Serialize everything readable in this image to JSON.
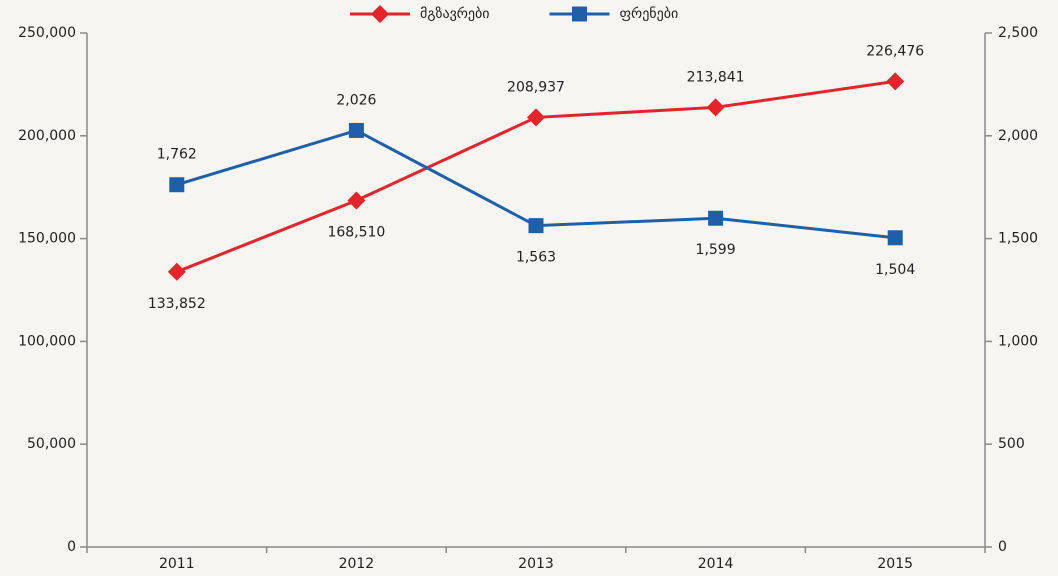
{
  "chart_data": {
    "type": "line",
    "categories": [
      "2011",
      "2012",
      "2013",
      "2014",
      "2015"
    ],
    "series": [
      {
        "name": "მგზავრები",
        "color": "#e3242b",
        "marker": "diamond",
        "axis": "y",
        "values": [
          133852,
          168510,
          208937,
          213841,
          226476
        ],
        "value_labels": [
          "133,852",
          "168,510",
          "208,937",
          "213,841",
          "226,476"
        ]
      },
      {
        "name": "ფრენები",
        "color": "#1f5fa8",
        "marker": "square",
        "axis": "y2",
        "values": [
          1762,
          2026,
          1563,
          1599,
          1504
        ],
        "value_labels": [
          "1,762",
          "2,026",
          "1,563",
          "1,599",
          "1,504"
        ]
      }
    ],
    "ylim": [
      0,
      250000
    ],
    "yticks": [
      0,
      {
        "value": 50000,
        "label": "50,000"
      },
      {
        "value": 100000,
        "label": "100,000"
      },
      {
        "value": 150000,
        "label": "150,000"
      },
      {
        "value": 200000,
        "label": "200,000"
      },
      {
        "value": 250000,
        "label": "250,000"
      }
    ],
    "y2lim": [
      0,
      2500
    ],
    "y2ticks": [
      0,
      500,
      {
        "value": 1000,
        "label": "1,000"
      },
      {
        "value": 1500,
        "label": "1,500"
      },
      {
        "value": 2000,
        "label": "2,000"
      },
      {
        "value": 2500,
        "label": "2,500"
      }
    ],
    "legend": "top",
    "grid": false
  }
}
